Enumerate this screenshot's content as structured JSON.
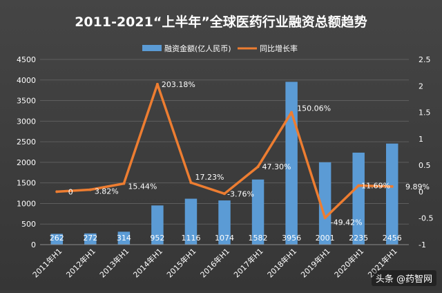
{
  "chart_data": {
    "type": "bar",
    "title": "2011-2021“上半年”全球医药行业融资总额趋势",
    "categories": [
      "2011年H1",
      "2012年H1",
      "2013年H1",
      "2014年H1",
      "2015年H1",
      "2016年H1",
      "2017年H1",
      "2018年H1",
      "2019年H1",
      "2020年H1",
      "2021年H1"
    ],
    "series": [
      {
        "name": "融资金额(亿人民币)",
        "type": "bar",
        "axis": "left",
        "values": [
          262,
          272,
          314,
          952,
          1116,
          1074,
          1582,
          3956,
          2001,
          2235,
          2456
        ],
        "labels": [
          "262",
          "272",
          "314",
          "952",
          "1116",
          "1074",
          "1582",
          "3956",
          "2001",
          "2235",
          "2456"
        ],
        "color": "#5b9bd5"
      },
      {
        "name": "同比增长率",
        "type": "line",
        "axis": "right",
        "values": [
          0,
          0.0382,
          0.1544,
          2.0318,
          0.1723,
          -0.0376,
          0.473,
          1.5006,
          -0.4942,
          0.1169,
          0.0989
        ],
        "labels": [
          "0",
          "3.82%",
          "15.44%",
          "203.18%",
          "17.23%",
          "-3.76%",
          "47.30%",
          "150.06%",
          "-49.42%",
          "11.69%",
          "9.89%"
        ],
        "color": "#ed7d31"
      }
    ],
    "y_left": {
      "ylim": [
        0,
        4500
      ],
      "ticks": [
        "0",
        "500",
        "1000",
        "1500",
        "2000",
        "2500",
        "3000",
        "3500",
        "4000",
        "4500"
      ]
    },
    "y_right": {
      "ylim": [
        -1,
        2.5
      ],
      "ticks": [
        "-1",
        "-0.5",
        "0",
        "0.5",
        "1",
        "1.5",
        "2",
        "2.5"
      ]
    },
    "grid": true,
    "legend_position": "top-center",
    "background_color": "#3d3d3d",
    "text_color": "#ffffff"
  },
  "watermark": "头条 @药智网"
}
